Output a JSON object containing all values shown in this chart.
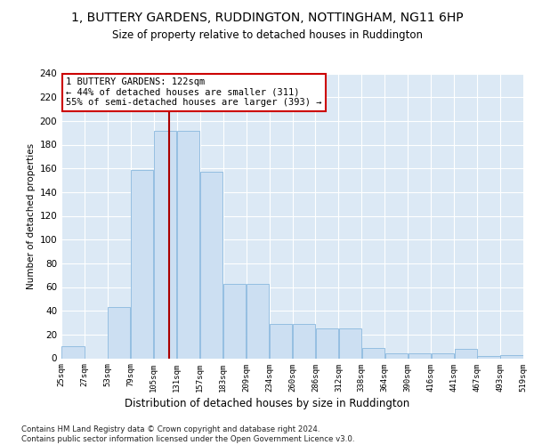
{
  "title_line1": "1, BUTTERY GARDENS, RUDDINGTON, NOTTINGHAM, NG11 6HP",
  "title_line2": "Size of property relative to detached houses in Ruddington",
  "xlabel": "Distribution of detached houses by size in Ruddington",
  "ylabel": "Number of detached properties",
  "bar_heights": [
    10,
    0,
    43,
    159,
    192,
    192,
    157,
    63,
    63,
    29,
    29,
    25,
    25,
    9,
    4,
    4,
    4,
    8,
    2,
    3
  ],
  "tick_labels": [
    "25sqm",
    "27sqm",
    "53sqm",
    "79sqm",
    "105sqm",
    "131sqm",
    "157sqm",
    "183sqm",
    "209sqm",
    "234sqm",
    "260sqm",
    "286sqm",
    "312sqm",
    "338sqm",
    "364sqm",
    "390sqm",
    "416sqm",
    "441sqm",
    "467sqm",
    "493sqm",
    "519sqm"
  ],
  "bar_color": "#ccdff2",
  "bar_edge_color": "#89b8de",
  "vline_color": "#aa0000",
  "ylim": [
    0,
    240
  ],
  "yticks": [
    0,
    20,
    40,
    60,
    80,
    100,
    120,
    140,
    160,
    180,
    200,
    220,
    240
  ],
  "annotation_text": "1 BUTTERY GARDENS: 122sqm\n← 44% of detached houses are smaller (311)\n55% of semi-detached houses are larger (393) →",
  "footer_text": "Contains HM Land Registry data © Crown copyright and database right 2024.\nContains public sector information licensed under the Open Government Licence v3.0.",
  "bg_color": "#dce9f5",
  "grid_color": "#ffffff"
}
